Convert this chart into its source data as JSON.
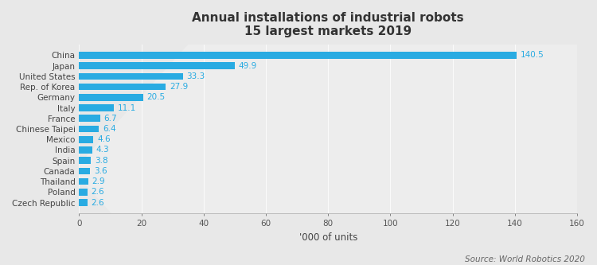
{
  "title_line1": "Annual installations of industrial robots",
  "title_line2": "15 largest markets 2019",
  "countries": [
    "Czech Republic",
    "Poland",
    "Thailand",
    "Canada",
    "Spain",
    "India",
    "Mexico",
    "Chinese Taipei",
    "France",
    "Italy",
    "Germany",
    "Rep. of Korea",
    "United States",
    "Japan",
    "China"
  ],
  "values": [
    2.6,
    2.6,
    2.9,
    3.6,
    3.8,
    4.3,
    4.6,
    6.4,
    6.7,
    11.1,
    20.5,
    27.9,
    33.3,
    49.9,
    140.5
  ],
  "bar_color": "#29ABE2",
  "bg_top": "#f0f0f0",
  "bg_bottom": "#d8d8d8",
  "xlim": [
    0,
    160
  ],
  "xlabel": "'000 of units",
  "source_text": "Source: World Robotics 2020",
  "title_fontsize": 11,
  "label_fontsize": 7.5,
  "value_fontsize": 7.5,
  "xlabel_fontsize": 8.5,
  "source_fontsize": 7.5,
  "xticks": [
    0,
    20,
    40,
    60,
    80,
    100,
    120,
    140,
    160
  ]
}
